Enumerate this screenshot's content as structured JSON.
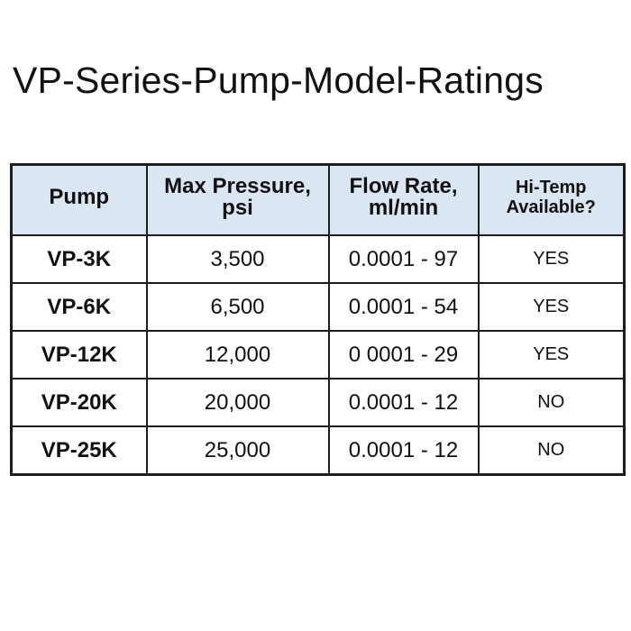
{
  "title": "VP-Series-Pump-Model-Ratings",
  "table": {
    "headers": {
      "pump": [
        "Pump"
      ],
      "max_pressure": [
        "Max Pressure,",
        "psi"
      ],
      "flow_rate": [
        "Flow Rate,",
        "ml/min"
      ],
      "hi_temp": [
        "Hi-Temp",
        "Available?"
      ]
    },
    "rows": [
      {
        "pump": "VP-3K",
        "max_pressure": "3,500",
        "flow_rate": "0.0001 - 97",
        "hi_temp": "YES"
      },
      {
        "pump": "VP-6K",
        "max_pressure": "6,500",
        "flow_rate": "0.0001 - 54",
        "hi_temp": "YES"
      },
      {
        "pump": "VP-12K",
        "max_pressure": "12,000",
        "flow_rate": "0 0001 - 29",
        "hi_temp": "YES"
      },
      {
        "pump": "VP-20K",
        "max_pressure": "20,000",
        "flow_rate": "0.0001 - 12",
        "hi_temp": "NO"
      },
      {
        "pump": "VP-25K",
        "max_pressure": "25,000",
        "flow_rate": "0.0001 - 12",
        "hi_temp": "NO"
      }
    ]
  },
  "colors": {
    "header_background": "#dbe6f3",
    "border": "#1d1d1d",
    "text": "#111111"
  }
}
